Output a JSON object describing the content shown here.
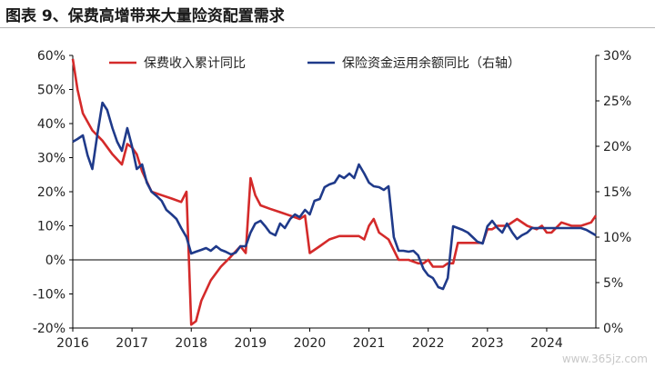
{
  "header": {
    "title": "图表 9、保费高增带来大量险资配置需求"
  },
  "watermark": "www.365jz.com",
  "chart_data": {
    "type": "line",
    "x_ticks": [
      "2016",
      "2017",
      "2018",
      "2019",
      "2020",
      "2021",
      "2022",
      "2023",
      "2024"
    ],
    "x_range": [
      2016.0,
      2024.83
    ],
    "y_left": {
      "ticks": [
        "60%",
        "50%",
        "40%",
        "30%",
        "20%",
        "10%",
        "0%",
        "-10%",
        "-20%"
      ],
      "range": [
        -20,
        60
      ]
    },
    "y_right": {
      "ticks": [
        "30%",
        "25%",
        "20%",
        "15%",
        "10%",
        "5%",
        "0%"
      ],
      "range": [
        0,
        30
      ]
    },
    "legend_position": "top",
    "grid": false,
    "series": [
      {
        "name": "保费收入累计同比",
        "axis": "left",
        "color": "#d42a2a",
        "points": [
          [
            2016.0,
            59
          ],
          [
            2016.08,
            50
          ],
          [
            2016.17,
            43
          ],
          [
            2016.33,
            38
          ],
          [
            2016.5,
            35
          ],
          [
            2016.67,
            31
          ],
          [
            2016.83,
            28
          ],
          [
            2016.92,
            34
          ],
          [
            2017.0,
            33
          ],
          [
            2017.08,
            31
          ],
          [
            2017.17,
            26
          ],
          [
            2017.33,
            20
          ],
          [
            2017.5,
            19
          ],
          [
            2017.67,
            18
          ],
          [
            2017.83,
            17
          ],
          [
            2017.92,
            20
          ],
          [
            2018.0,
            -19
          ],
          [
            2018.08,
            -18
          ],
          [
            2018.17,
            -12
          ],
          [
            2018.33,
            -6
          ],
          [
            2018.5,
            -2
          ],
          [
            2018.67,
            1
          ],
          [
            2018.83,
            4
          ],
          [
            2018.92,
            2
          ],
          [
            2019.0,
            24
          ],
          [
            2019.08,
            19
          ],
          [
            2019.17,
            16
          ],
          [
            2019.33,
            15
          ],
          [
            2019.5,
            14
          ],
          [
            2019.67,
            13
          ],
          [
            2019.83,
            12
          ],
          [
            2019.92,
            13
          ],
          [
            2020.0,
            2
          ],
          [
            2020.17,
            4
          ],
          [
            2020.33,
            6
          ],
          [
            2020.5,
            7
          ],
          [
            2020.67,
            7
          ],
          [
            2020.83,
            7
          ],
          [
            2020.92,
            6
          ],
          [
            2021.0,
            10
          ],
          [
            2021.08,
            12
          ],
          [
            2021.17,
            8
          ],
          [
            2021.33,
            6
          ],
          [
            2021.5,
            0
          ],
          [
            2021.67,
            0
          ],
          [
            2021.83,
            -1
          ],
          [
            2021.92,
            -1
          ],
          [
            2022.0,
            0
          ],
          [
            2022.08,
            -2
          ],
          [
            2022.25,
            -2
          ],
          [
            2022.33,
            -1
          ],
          [
            2022.42,
            -1
          ],
          [
            2022.5,
            5
          ],
          [
            2022.58,
            5
          ],
          [
            2022.75,
            5
          ],
          [
            2022.92,
            5
          ],
          [
            2023.0,
            9
          ],
          [
            2023.08,
            9
          ],
          [
            2023.17,
            10
          ],
          [
            2023.33,
            10
          ],
          [
            2023.5,
            12
          ],
          [
            2023.67,
            10
          ],
          [
            2023.83,
            9
          ],
          [
            2023.92,
            10
          ],
          [
            2024.0,
            8
          ],
          [
            2024.08,
            8
          ],
          [
            2024.25,
            11
          ],
          [
            2024.42,
            10
          ],
          [
            2024.58,
            10
          ],
          [
            2024.75,
            11
          ],
          [
            2024.83,
            13
          ]
        ]
      },
      {
        "name": "保险资金运用余额同比（右轴）",
        "axis": "right",
        "color": "#1f3a8a",
        "points": [
          [
            2016.0,
            20.5
          ],
          [
            2016.08,
            20.8
          ],
          [
            2016.17,
            21.2
          ],
          [
            2016.25,
            19.0
          ],
          [
            2016.33,
            17.5
          ],
          [
            2016.42,
            21.5
          ],
          [
            2016.5,
            24.8
          ],
          [
            2016.58,
            24.0
          ],
          [
            2016.67,
            22.0
          ],
          [
            2016.75,
            20.5
          ],
          [
            2016.83,
            19.5
          ],
          [
            2016.92,
            22.0
          ],
          [
            2017.0,
            20.0
          ],
          [
            2017.08,
            17.5
          ],
          [
            2017.17,
            18.0
          ],
          [
            2017.25,
            16.0
          ],
          [
            2017.33,
            15.0
          ],
          [
            2017.42,
            14.5
          ],
          [
            2017.5,
            14.0
          ],
          [
            2017.58,
            13.0
          ],
          [
            2017.67,
            12.5
          ],
          [
            2017.75,
            12.0
          ],
          [
            2017.83,
            11.0
          ],
          [
            2017.92,
            10.0
          ],
          [
            2018.0,
            8.2
          ],
          [
            2018.08,
            8.4
          ],
          [
            2018.17,
            8.6
          ],
          [
            2018.25,
            8.8
          ],
          [
            2018.33,
            8.5
          ],
          [
            2018.42,
            9.0
          ],
          [
            2018.5,
            8.6
          ],
          [
            2018.58,
            8.4
          ],
          [
            2018.67,
            8.1
          ],
          [
            2018.75,
            8.3
          ],
          [
            2018.83,
            9.0
          ],
          [
            2018.92,
            9.0
          ],
          [
            2019.0,
            10.5
          ],
          [
            2019.08,
            11.5
          ],
          [
            2019.17,
            11.8
          ],
          [
            2019.25,
            11.2
          ],
          [
            2019.33,
            10.5
          ],
          [
            2019.42,
            10.2
          ],
          [
            2019.5,
            11.5
          ],
          [
            2019.58,
            11.0
          ],
          [
            2019.67,
            12.0
          ],
          [
            2019.75,
            12.5
          ],
          [
            2019.83,
            12.2
          ],
          [
            2019.92,
            13.0
          ],
          [
            2020.0,
            12.5
          ],
          [
            2020.08,
            14.0
          ],
          [
            2020.17,
            14.2
          ],
          [
            2020.25,
            15.5
          ],
          [
            2020.33,
            15.8
          ],
          [
            2020.42,
            16.0
          ],
          [
            2020.5,
            16.8
          ],
          [
            2020.58,
            16.5
          ],
          [
            2020.67,
            17.0
          ],
          [
            2020.75,
            16.5
          ],
          [
            2020.83,
            18.0
          ],
          [
            2020.92,
            17.0
          ],
          [
            2021.0,
            16.0
          ],
          [
            2021.08,
            15.6
          ],
          [
            2021.17,
            15.5
          ],
          [
            2021.25,
            15.2
          ],
          [
            2021.33,
            15.6
          ],
          [
            2021.42,
            10.0
          ],
          [
            2021.5,
            8.5
          ],
          [
            2021.58,
            8.5
          ],
          [
            2021.67,
            8.4
          ],
          [
            2021.75,
            8.5
          ],
          [
            2021.83,
            8.0
          ],
          [
            2021.92,
            6.5
          ],
          [
            2022.0,
            5.8
          ],
          [
            2022.08,
            5.5
          ],
          [
            2022.17,
            4.5
          ],
          [
            2022.25,
            4.3
          ],
          [
            2022.33,
            5.5
          ],
          [
            2022.42,
            11.2
          ],
          [
            2022.5,
            11.0
          ],
          [
            2022.58,
            10.8
          ],
          [
            2022.67,
            10.5
          ],
          [
            2022.75,
            10.0
          ],
          [
            2022.83,
            9.5
          ],
          [
            2022.92,
            9.3
          ],
          [
            2023.0,
            11.2
          ],
          [
            2023.08,
            11.8
          ],
          [
            2023.17,
            11.0
          ],
          [
            2023.25,
            10.5
          ],
          [
            2023.33,
            11.5
          ],
          [
            2023.42,
            10.5
          ],
          [
            2023.5,
            9.8
          ],
          [
            2023.58,
            10.2
          ],
          [
            2023.67,
            10.5
          ],
          [
            2023.75,
            11.0
          ],
          [
            2023.83,
            11.0
          ],
          [
            2023.92,
            11.0
          ],
          [
            2024.0,
            11.0
          ],
          [
            2024.17,
            11.0
          ],
          [
            2024.33,
            11.0
          ],
          [
            2024.5,
            11.0
          ],
          [
            2024.58,
            11.0
          ],
          [
            2024.67,
            10.8
          ],
          [
            2024.75,
            10.5
          ],
          [
            2024.83,
            10.2
          ]
        ]
      }
    ]
  }
}
